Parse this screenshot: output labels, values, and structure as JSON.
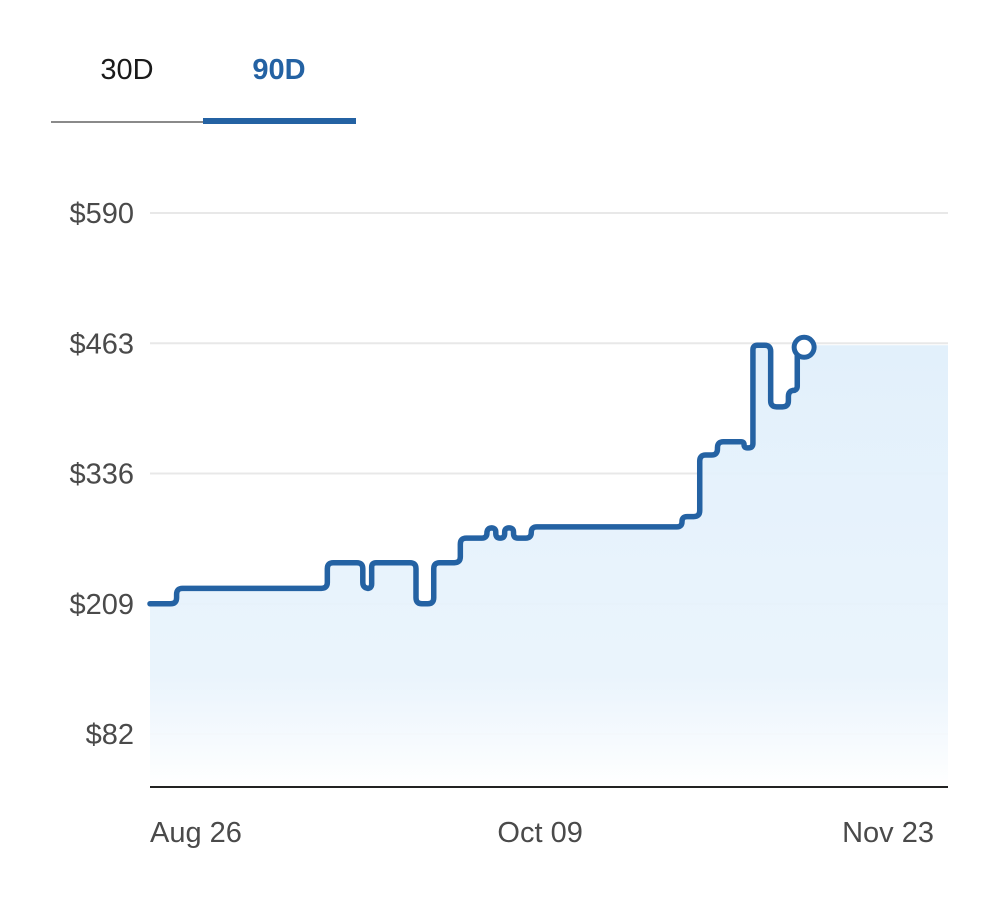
{
  "tabs": [
    {
      "label": "30D",
      "active": false
    },
    {
      "label": "90D",
      "active": true
    }
  ],
  "colors": {
    "accent": "#2462a3",
    "area_top": "#e2f0fb",
    "grid": "#e8e8e8",
    "axis": "#222222"
  },
  "chart_data": {
    "type": "line",
    "title": "",
    "xlabel": "",
    "ylabel": "",
    "step": true,
    "area_fill": true,
    "grid": "horizontal",
    "ylim": [
      30,
      590
    ],
    "y_ticks": [
      590,
      463,
      336,
      209,
      82
    ],
    "y_tick_labels": [
      "$590",
      "$463",
      "$336",
      "$209",
      "$82"
    ],
    "x_ticks": [
      "2023-08-26",
      "2023-10-09",
      "2023-11-23"
    ],
    "x_tick_labels": [
      "Aug 26",
      "Oct 09",
      "Nov 23"
    ],
    "xlim": [
      "2023-08-26",
      "2023-11-24"
    ],
    "series": [
      {
        "name": "",
        "points": [
          [
            "2023-08-26",
            209
          ],
          [
            "2023-08-29",
            224
          ],
          [
            "2023-09-15",
            249
          ],
          [
            "2023-09-19",
            224
          ],
          [
            "2023-09-20",
            249
          ],
          [
            "2023-09-25",
            209
          ],
          [
            "2023-09-27",
            249
          ],
          [
            "2023-09-30",
            273
          ],
          [
            "2023-10-03",
            283
          ],
          [
            "2023-10-04",
            273
          ],
          [
            "2023-10-05",
            283
          ],
          [
            "2023-10-06",
            273
          ],
          [
            "2023-10-08",
            284
          ],
          [
            "2023-10-25",
            294
          ],
          [
            "2023-10-27",
            354
          ],
          [
            "2023-10-29",
            367
          ],
          [
            "2023-11-01",
            361
          ],
          [
            "2023-11-02",
            461
          ],
          [
            "2023-11-04",
            401
          ],
          [
            "2023-11-06",
            417
          ],
          [
            "2023-11-07",
            461
          ],
          [
            "2023-11-08",
            461
          ]
        ],
        "end_marker": true
      }
    ]
  }
}
